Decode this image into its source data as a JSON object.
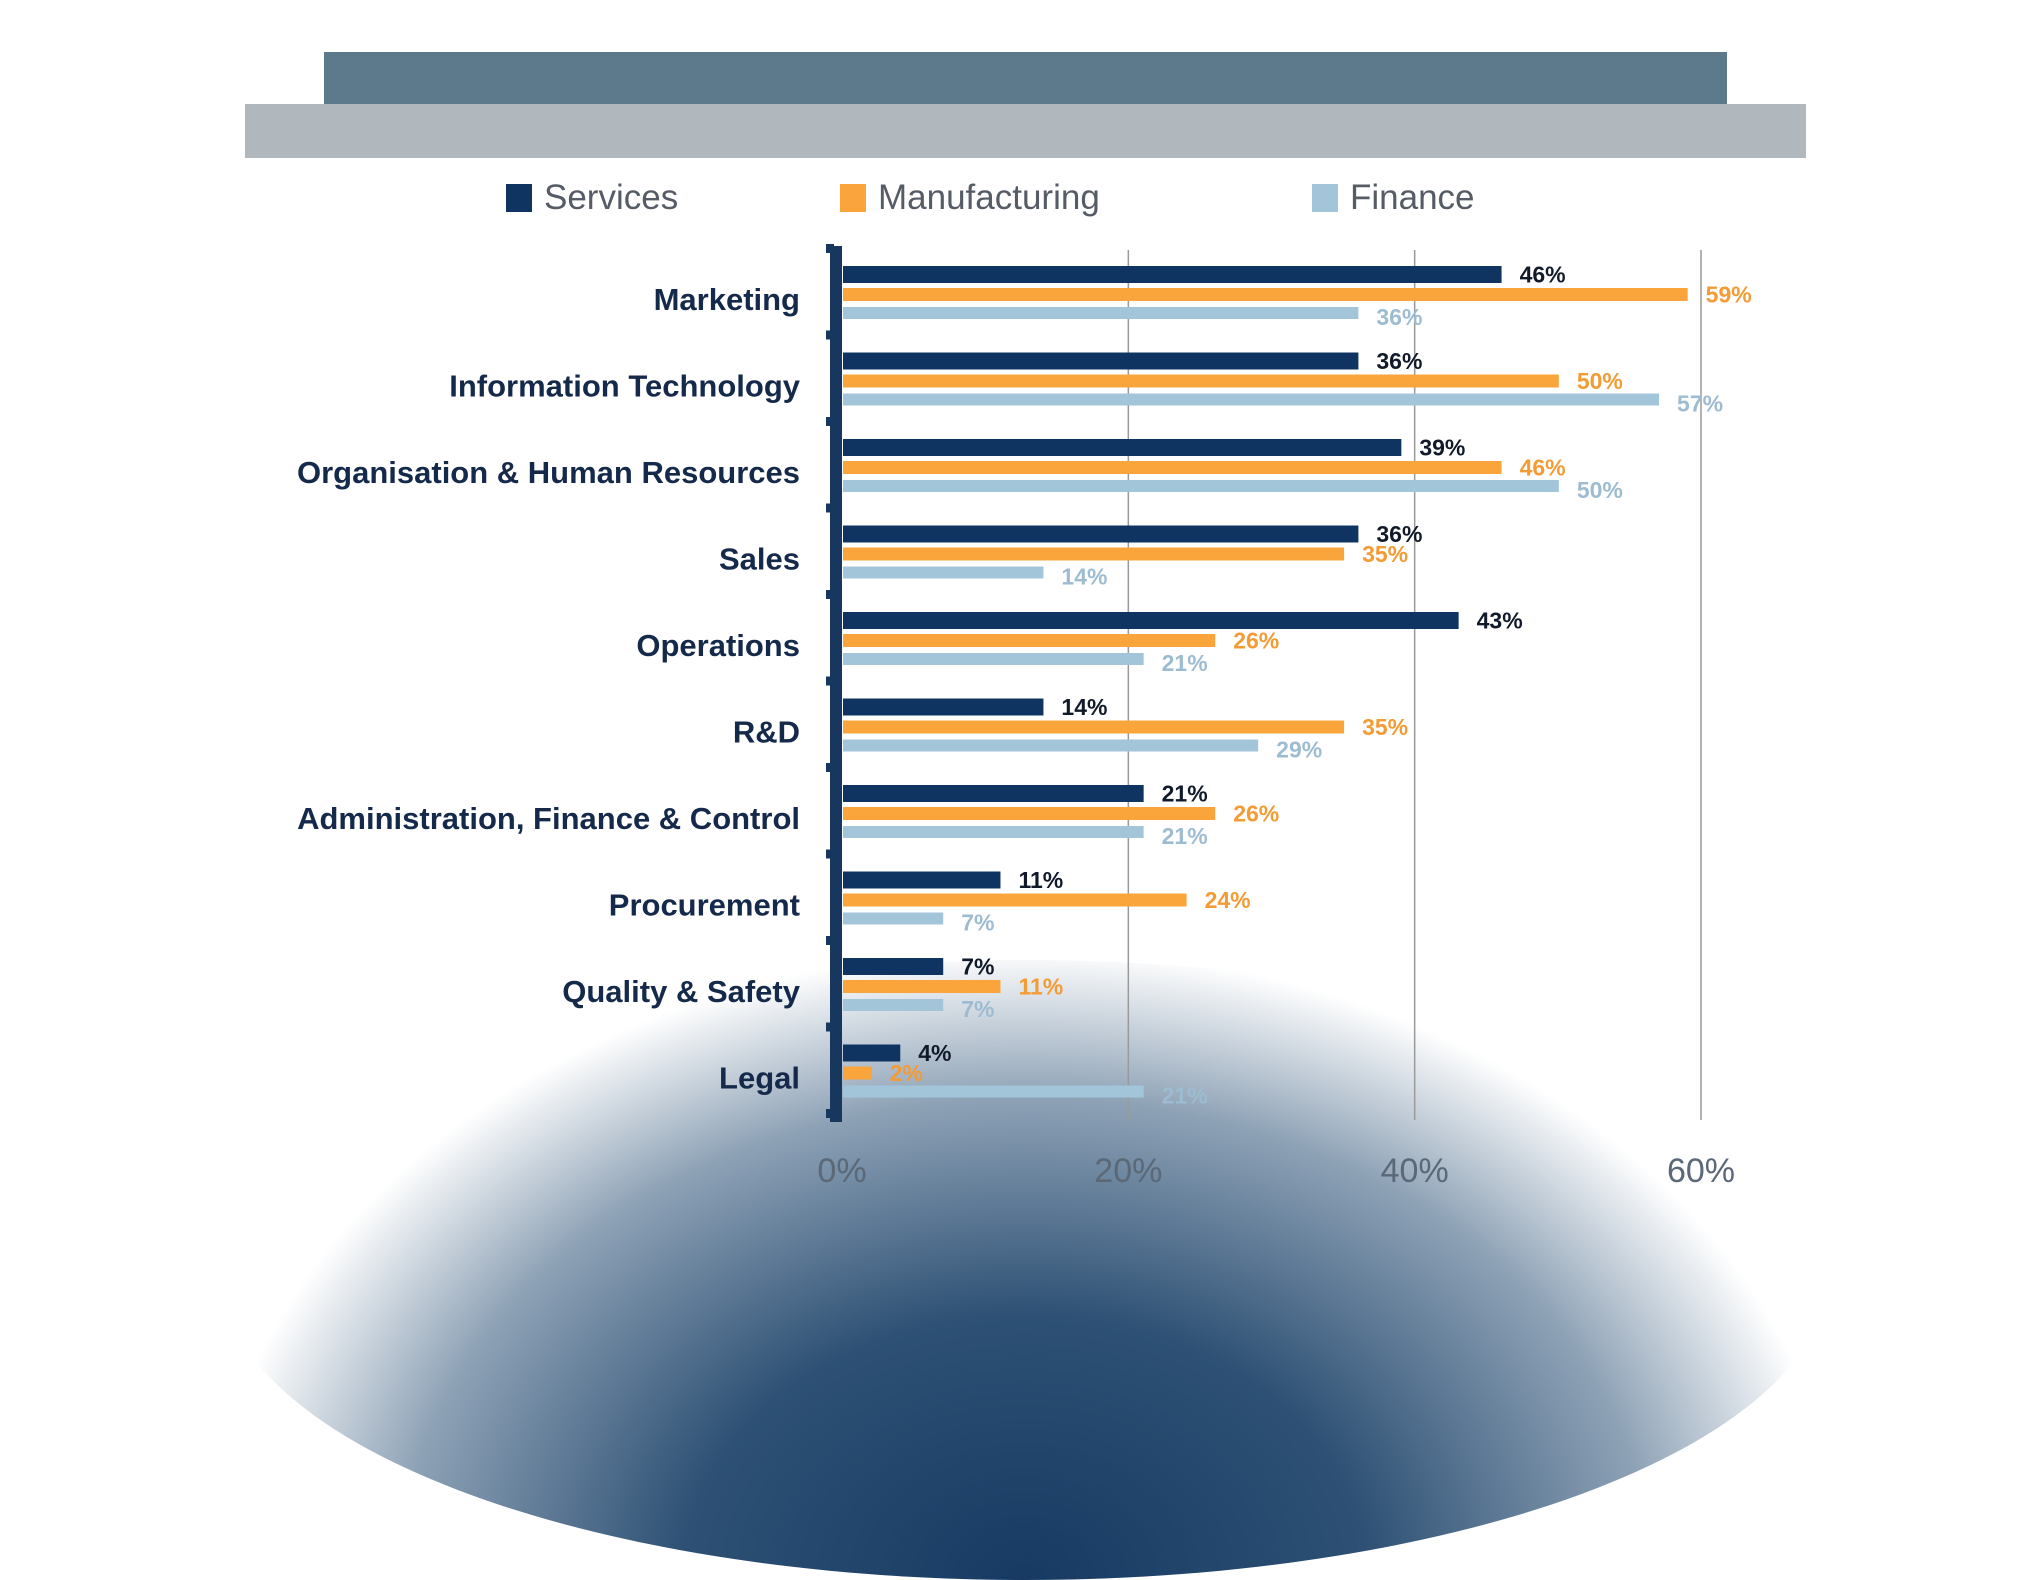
{
  "chart_data": {
    "type": "bar",
    "orientation": "horizontal",
    "categories": [
      "Marketing",
      "Information Technology",
      "Organisation & Human Resources",
      "Sales",
      "Operations",
      "R&D",
      "Administration, Finance & Control",
      "Procurement",
      "Quality & Safety",
      "Legal"
    ],
    "series": [
      {
        "name": "Services",
        "color": "#0f3461",
        "label_color": "#111a2a",
        "values": [
          46,
          36,
          39,
          36,
          43,
          14,
          21,
          11,
          7,
          4
        ]
      },
      {
        "name": "Manufacturing",
        "color": "#f9a53b",
        "label_color": "#f39b34",
        "values": [
          59,
          50,
          46,
          35,
          26,
          35,
          26,
          24,
          11,
          2
        ]
      },
      {
        "name": "Finance",
        "color": "#a3c5da",
        "label_color": "#9dbcd2",
        "values": [
          36,
          57,
          50,
          14,
          21,
          29,
          21,
          7,
          7,
          21
        ]
      }
    ],
    "x_ticks": [
      "0%",
      "20%",
      "40%",
      "60%"
    ],
    "xlim": [
      0,
      60
    ],
    "grid": true,
    "legend": "top"
  }
}
